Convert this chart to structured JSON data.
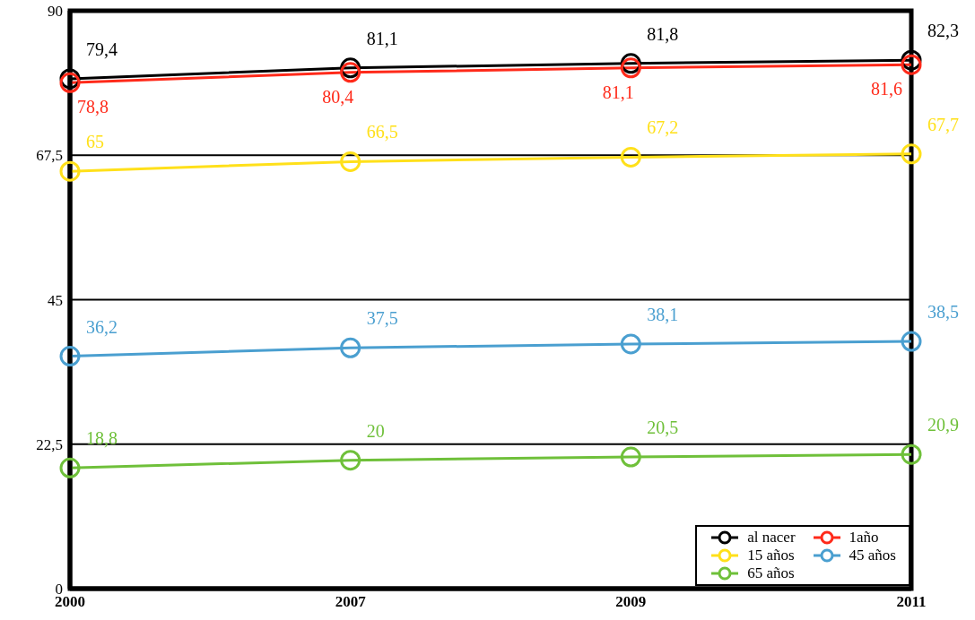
{
  "chart_data": {
    "type": "line",
    "categories": [
      "2000",
      "2007",
      "2009",
      "2011"
    ],
    "series": [
      {
        "name": "al nacer",
        "color": "#000000",
        "values": [
          79.4,
          81.1,
          81.8,
          82.3
        ],
        "value_labels": [
          "79,4",
          "81,1",
          "81,8",
          "82,3"
        ]
      },
      {
        "name": "1año",
        "color": "#ff2a1a",
        "values": [
          78.8,
          80.4,
          81.1,
          81.6
        ],
        "value_labels": [
          "78,8",
          "80,4",
          "81,1",
          "81,6"
        ]
      },
      {
        "name": "15 años",
        "color": "#ffe01a",
        "values": [
          65,
          66.5,
          67.2,
          67.7
        ],
        "value_labels": [
          "65",
          "66,5",
          "67,2",
          "67,7"
        ]
      },
      {
        "name": "45 años",
        "color": "#4a9fd0",
        "values": [
          36.2,
          37.5,
          38.1,
          38.5
        ],
        "value_labels": [
          "36,2",
          "37,5",
          "38,1",
          "38,5"
        ]
      },
      {
        "name": "65 años",
        "color": "#6fc03a",
        "values": [
          18.8,
          20,
          20.5,
          20.9
        ],
        "value_labels": [
          "18,8",
          "20",
          "20,5",
          "20,9"
        ]
      }
    ],
    "ylim": [
      0,
      90
    ],
    "yticks": [
      0,
      {
        "value": 22.5,
        "label": "22,5"
      },
      45,
      {
        "value": 67.5,
        "label": "67,5"
      },
      90
    ],
    "grid": "y",
    "legend": "bottom right",
    "marker": "circle",
    "line_style": "solid"
  }
}
